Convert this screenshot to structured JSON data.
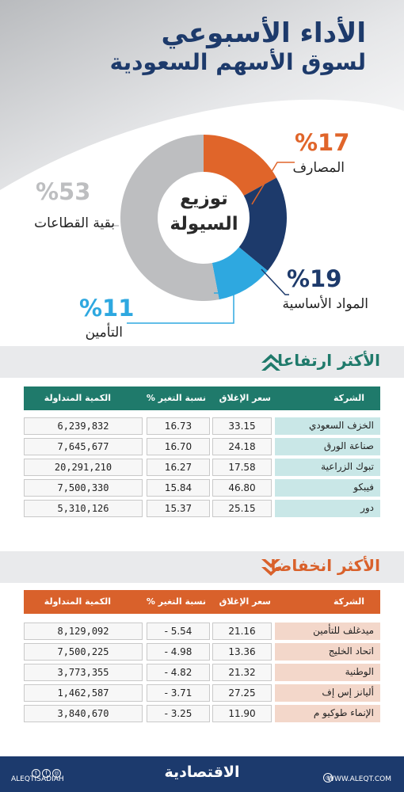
{
  "header": {
    "title_line1": "الأداء الأسبوعي",
    "title_line2": "لسوق الأسهم السعودية"
  },
  "colors": {
    "banks": "#e0652a",
    "materials": "#1d3a6b",
    "insurance": "#2ea8e0",
    "others": "#bdbec0",
    "gainers_header": "#1f7a6b",
    "losers_header": "#d9612b",
    "gainers_row": "#c9e7e7",
    "losers_row": "#f3d7ca"
  },
  "chart_data": {
    "type": "pie",
    "title": "توزيع السيولة",
    "center_label_line1": "توزيع",
    "center_label_line2": "السيولة",
    "slices": [
      {
        "label": "المصارف",
        "value": 17,
        "display": "%17"
      },
      {
        "label": "المواد الأساسية",
        "value": 19,
        "display": "%19"
      },
      {
        "label": "التأمين",
        "value": 11,
        "display": "%11"
      },
      {
        "label": "بقية القطاعات",
        "value": 53,
        "display": "%53"
      }
    ]
  },
  "gainers": {
    "title": "الأكثر ارتفاعا",
    "headers": {
      "company": "الشركة",
      "close": "سعر الإغلاق",
      "change": "نسبة التغير %",
      "volume": "الكمية المتداولة"
    },
    "rows": [
      {
        "company": "الخزف السعودي",
        "close": "33.15",
        "change": "16.73",
        "volume": "6,239,832"
      },
      {
        "company": "صناعة الورق",
        "close": "24.18",
        "change": "16.70",
        "volume": "7,645,677"
      },
      {
        "company": "تبوك الزراعية",
        "close": "17.58",
        "change": "16.27",
        "volume": "20,291,210"
      },
      {
        "company": "فيبكو",
        "close": "46.80",
        "change": "15.84",
        "volume": "7,500,330"
      },
      {
        "company": "دور",
        "close": "25.15",
        "change": "15.37",
        "volume": "5,310,126"
      }
    ]
  },
  "losers": {
    "title": "الأكثر انخفاضا",
    "headers": {
      "company": "الشركة",
      "close": "سعر الإغلاق",
      "change": "نسبة التغير %",
      "volume": "الكمية المتداولة"
    },
    "rows": [
      {
        "company": "ميدغلف للتأمين",
        "close": "21.16",
        "change": "- 5.54",
        "volume": "8,129,092"
      },
      {
        "company": "اتحاد الخليج",
        "close": "13.36",
        "change": "- 4.98",
        "volume": "7,500,225"
      },
      {
        "company": "الوطنية",
        "close": "21.32",
        "change": "- 4.82",
        "volume": "3,773,355"
      },
      {
        "company": "أليانز إس إف",
        "close": "27.25",
        "change": "- 3.71",
        "volume": "1,462,587"
      },
      {
        "company": "الإنماء طوكيو م",
        "close": "11.90",
        "change": "- 3.25",
        "volume": "3,840,670"
      }
    ]
  },
  "footer": {
    "logo": "الاقتصادية",
    "handle": "ALEQTISADIAH",
    "website": "WWW.ALEQT.COM"
  }
}
